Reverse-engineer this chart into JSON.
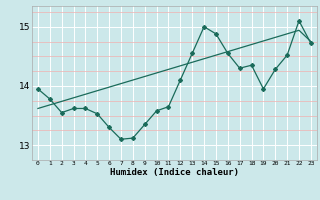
{
  "title": "",
  "xlabel": "Humidex (Indice chaleur)",
  "bg_color": "#cce8ea",
  "grid_color_major": "#ffffff",
  "grid_color_minor": "#f0b0b0",
  "line_color": "#1a6b5a",
  "x_values": [
    0,
    1,
    2,
    3,
    4,
    5,
    6,
    7,
    8,
    9,
    10,
    11,
    12,
    13,
    14,
    15,
    16,
    17,
    18,
    19,
    20,
    21,
    22,
    23
  ],
  "y_curve": [
    13.95,
    13.78,
    13.55,
    13.62,
    13.62,
    13.53,
    13.3,
    13.1,
    13.12,
    13.35,
    13.58,
    13.65,
    14.1,
    14.55,
    15.0,
    14.88,
    14.55,
    14.3,
    14.35,
    13.95,
    14.28,
    14.52,
    15.1,
    14.72
  ],
  "y_linear": [
    13.62,
    13.68,
    13.74,
    13.8,
    13.86,
    13.92,
    13.98,
    14.04,
    14.1,
    14.16,
    14.22,
    14.28,
    14.34,
    14.4,
    14.46,
    14.52,
    14.58,
    14.64,
    14.7,
    14.76,
    14.82,
    14.88,
    14.94,
    14.75
  ],
  "ylim": [
    12.75,
    15.35
  ],
  "yticks": [
    13,
    14,
    15
  ],
  "xlim": [
    -0.5,
    23.5
  ],
  "figwidth": 3.2,
  "figheight": 2.0,
  "dpi": 100
}
